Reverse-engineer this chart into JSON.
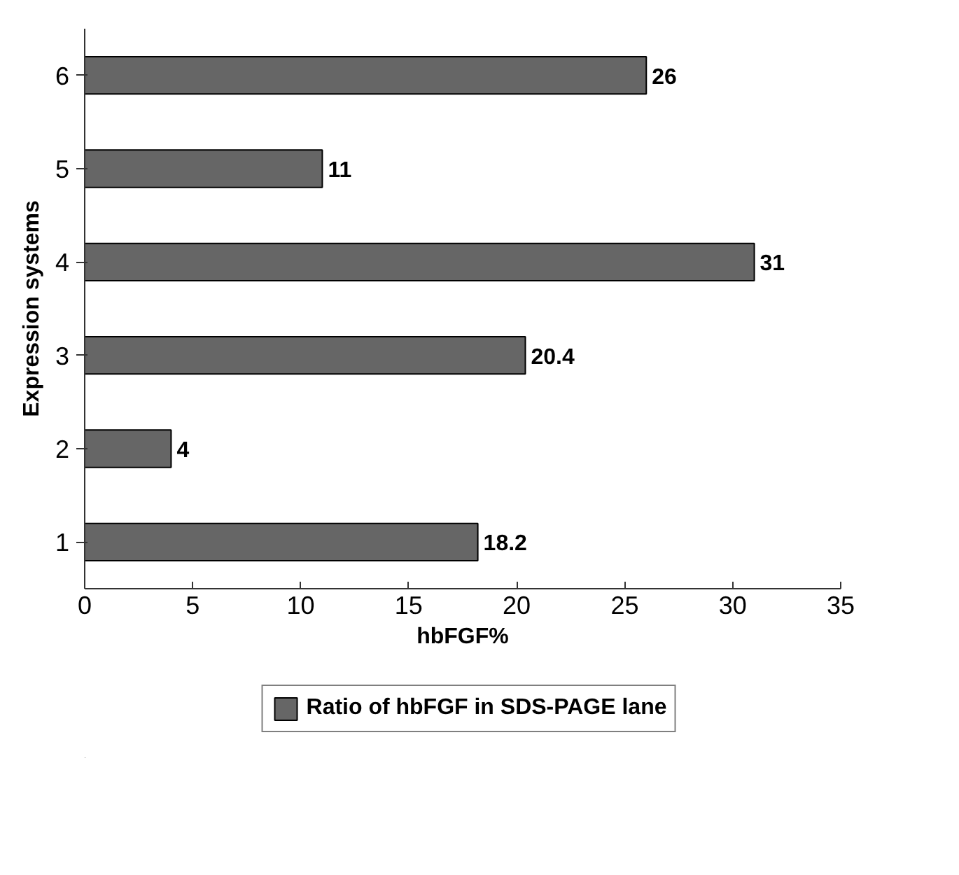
{
  "chart_data": {
    "type": "bar",
    "orientation": "horizontal",
    "xlabel": "hbFGF%",
    "ylabel": "Expression systems",
    "categories": [
      "6",
      "5",
      "4",
      "3",
      "2",
      "1"
    ],
    "series": [
      {
        "name": "Ratio of hbFGF in SDS-PAGE lane",
        "color": "#666666",
        "values": [
          26,
          11,
          31,
          20.4,
          4,
          18.2
        ]
      }
    ],
    "xlim": [
      0,
      35
    ],
    "xticks": [
      0,
      5,
      10,
      15,
      20,
      25,
      30,
      35
    ],
    "grid": false,
    "legend": "bottom",
    "data_labels": true
  }
}
